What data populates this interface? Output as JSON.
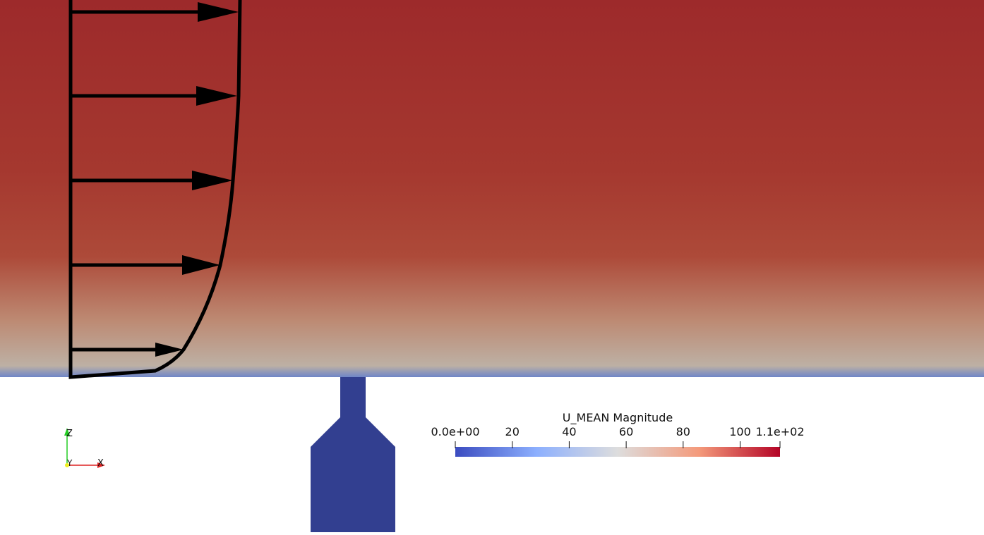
{
  "colorbar": {
    "title": "U_MEAN Magnitude",
    "range": [
      0,
      114
    ],
    "ticks": [
      {
        "value": 0,
        "label": "0.0e+00"
      },
      20,
      40,
      60,
      80,
      100,
      {
        "value": 114,
        "label": "1.1e+02"
      }
    ]
  },
  "orientation_axes": {
    "z": "Z",
    "y": "Y",
    "x": "X"
  }
}
